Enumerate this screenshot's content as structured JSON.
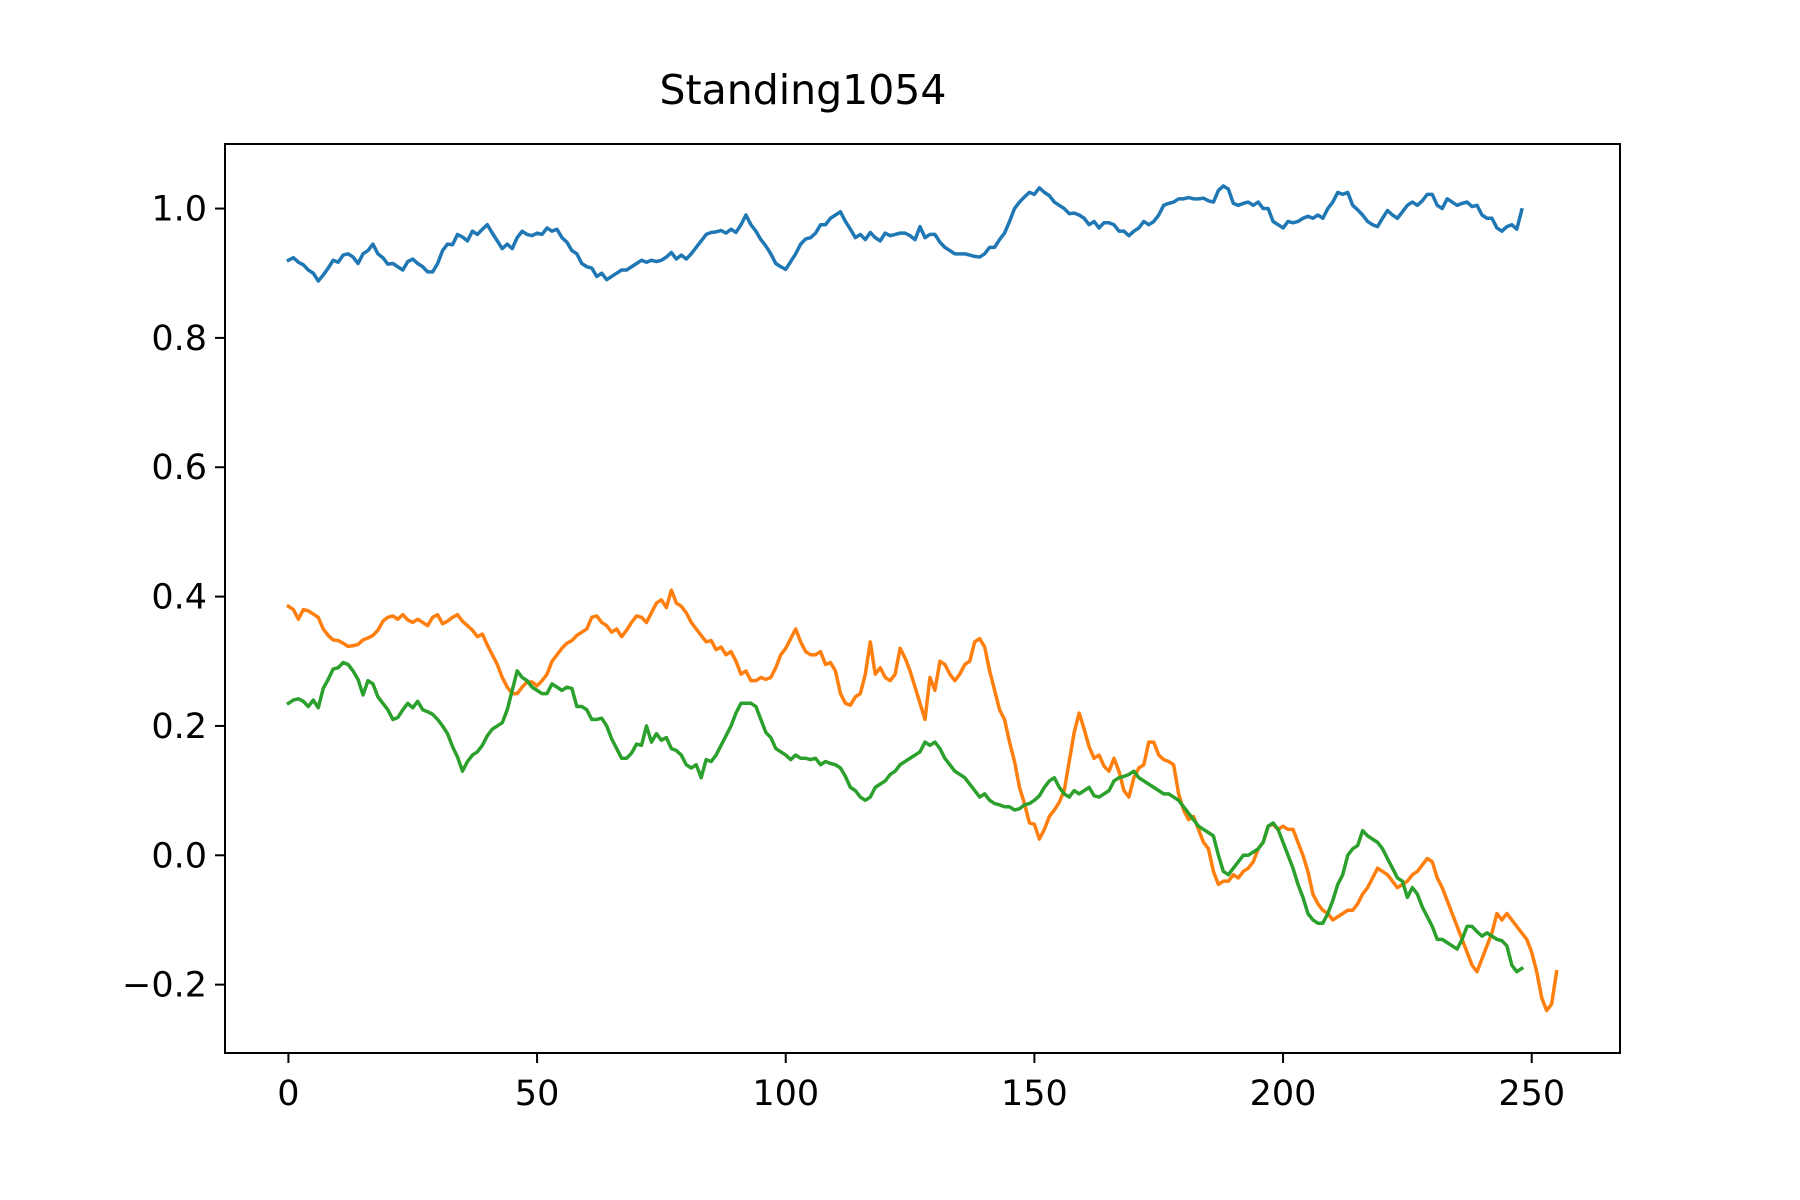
{
  "chart_data": {
    "type": "line",
    "title": "Standing1054",
    "xlabel": "",
    "ylabel": "",
    "xlim": [
      -12.75,
      267.75
    ],
    "ylim": [
      -0.3057,
      1.0998
    ],
    "x_ticks": [
      0,
      50,
      100,
      150,
      200,
      250
    ],
    "x_tick_labels": [
      "0",
      "50",
      "100",
      "150",
      "200",
      "250"
    ],
    "y_ticks": [
      -0.2,
      0.0,
      0.2,
      0.4,
      0.6,
      0.8,
      1.0
    ],
    "y_tick_labels": [
      "−0.2",
      "0.0",
      "0.2",
      "0.4",
      "0.6",
      "0.8",
      "1.0"
    ],
    "grid": false,
    "legend": "none",
    "x_start": 0,
    "x_step": 1,
    "series": [
      {
        "color": "#1f77b4",
        "values": [
          0.92,
          0.924,
          0.917,
          0.913,
          0.905,
          0.9,
          0.888,
          0.897,
          0.908,
          0.92,
          0.917,
          0.928,
          0.93,
          0.925,
          0.915,
          0.93,
          0.935,
          0.945,
          0.93,
          0.924,
          0.914,
          0.915,
          0.91,
          0.905,
          0.918,
          0.922,
          0.915,
          0.91,
          0.902,
          0.902,
          0.915,
          0.935,
          0.945,
          0.944,
          0.96,
          0.956,
          0.95,
          0.965,
          0.96,
          0.968,
          0.975,
          0.962,
          0.95,
          0.938,
          0.945,
          0.938,
          0.955,
          0.965,
          0.96,
          0.958,
          0.962,
          0.96,
          0.97,
          0.965,
          0.968,
          0.955,
          0.948,
          0.935,
          0.93,
          0.915,
          0.91,
          0.908,
          0.895,
          0.9,
          0.89,
          0.895,
          0.9,
          0.905,
          0.905,
          0.91,
          0.915,
          0.92,
          0.917,
          0.92,
          0.918,
          0.92,
          0.925,
          0.932,
          0.922,
          0.928,
          0.922,
          0.93,
          0.94,
          0.95,
          0.96,
          0.963,
          0.964,
          0.966,
          0.962,
          0.968,
          0.963,
          0.975,
          0.99,
          0.975,
          0.965,
          0.952,
          0.942,
          0.93,
          0.915,
          0.91,
          0.906,
          0.918,
          0.93,
          0.945,
          0.953,
          0.955,
          0.962,
          0.975,
          0.975,
          0.985,
          0.99,
          0.995,
          0.98,
          0.968,
          0.955,
          0.96,
          0.952,
          0.963,
          0.955,
          0.95,
          0.962,
          0.958,
          0.96,
          0.962,
          0.962,
          0.958,
          0.952,
          0.972,
          0.955,
          0.96,
          0.96,
          0.948,
          0.94,
          0.935,
          0.93,
          0.93,
          0.93,
          0.928,
          0.926,
          0.925,
          0.93,
          0.94,
          0.94,
          0.952,
          0.962,
          0.98,
          1.0,
          1.01,
          1.018,
          1.025,
          1.022,
          1.032,
          1.025,
          1.02,
          1.01,
          1.005,
          1.0,
          0.992,
          0.993,
          0.99,
          0.985,
          0.975,
          0.98,
          0.97,
          0.978,
          0.978,
          0.975,
          0.965,
          0.965,
          0.958,
          0.965,
          0.97,
          0.98,
          0.975,
          0.98,
          0.99,
          1.005,
          1.008,
          1.01,
          1.015,
          1.015,
          1.017,
          1.015,
          1.015,
          1.016,
          1.012,
          1.01,
          1.028,
          1.035,
          1.03,
          1.008,
          1.005,
          1.008,
          1.01,
          1.005,
          1.01,
          1.0,
          1.0,
          0.98,
          0.975,
          0.97,
          0.98,
          0.978,
          0.98,
          0.985,
          0.988,
          0.985,
          0.99,
          0.985,
          1.0,
          1.01,
          1.025,
          1.022,
          1.025,
          1.005,
          0.998,
          0.99,
          0.98,
          0.975,
          0.972,
          0.985,
          0.997,
          0.99,
          0.985,
          0.995,
          1.005,
          1.01,
          1.005,
          1.012,
          1.022,
          1.022,
          1.005,
          1.0,
          1.015,
          1.01,
          1.005,
          1.008,
          1.01,
          1.003,
          1.005,
          0.99,
          0.985,
          0.985,
          0.97,
          0.965,
          0.972,
          0.975,
          0.968,
          0.998
        ]
      },
      {
        "color": "#ff7f0e",
        "values": [
          0.385,
          0.38,
          0.365,
          0.38,
          0.378,
          0.373,
          0.368,
          0.35,
          0.34,
          0.333,
          0.332,
          0.328,
          0.323,
          0.324,
          0.326,
          0.333,
          0.336,
          0.34,
          0.348,
          0.362,
          0.368,
          0.37,
          0.365,
          0.372,
          0.364,
          0.36,
          0.365,
          0.36,
          0.355,
          0.368,
          0.372,
          0.358,
          0.362,
          0.368,
          0.372,
          0.362,
          0.355,
          0.348,
          0.338,
          0.342,
          0.325,
          0.31,
          0.295,
          0.275,
          0.26,
          0.25,
          0.25,
          0.26,
          0.268,
          0.268,
          0.262,
          0.27,
          0.28,
          0.3,
          0.31,
          0.32,
          0.328,
          0.332,
          0.34,
          0.345,
          0.35,
          0.368,
          0.37,
          0.36,
          0.355,
          0.345,
          0.35,
          0.338,
          0.348,
          0.36,
          0.37,
          0.368,
          0.36,
          0.375,
          0.39,
          0.395,
          0.383,
          0.41,
          0.39,
          0.385,
          0.375,
          0.36,
          0.35,
          0.34,
          0.33,
          0.332,
          0.318,
          0.322,
          0.31,
          0.315,
          0.3,
          0.28,
          0.285,
          0.27,
          0.27,
          0.275,
          0.272,
          0.275,
          0.29,
          0.31,
          0.32,
          0.335,
          0.35,
          0.33,
          0.315,
          0.31,
          0.31,
          0.315,
          0.295,
          0.298,
          0.285,
          0.25,
          0.235,
          0.232,
          0.245,
          0.25,
          0.28,
          0.33,
          0.28,
          0.29,
          0.275,
          0.27,
          0.28,
          0.32,
          0.305,
          0.285,
          0.26,
          0.235,
          0.21,
          0.275,
          0.255,
          0.3,
          0.295,
          0.28,
          0.27,
          0.28,
          0.295,
          0.3,
          0.33,
          0.335,
          0.322,
          0.285,
          0.255,
          0.225,
          0.21,
          0.175,
          0.145,
          0.105,
          0.08,
          0.05,
          0.048,
          0.025,
          0.04,
          0.06,
          0.07,
          0.082,
          0.1,
          0.145,
          0.19,
          0.22,
          0.195,
          0.168,
          0.15,
          0.155,
          0.138,
          0.13,
          0.15,
          0.13,
          0.1,
          0.09,
          0.12,
          0.135,
          0.14,
          0.175,
          0.175,
          0.155,
          0.148,
          0.145,
          0.14,
          0.095,
          0.07,
          0.055,
          0.06,
          0.04,
          0.02,
          0.01,
          -0.025,
          -0.045,
          -0.04,
          -0.04,
          -0.03,
          -0.035,
          -0.025,
          -0.02,
          -0.01,
          0.01,
          0.02,
          0.045,
          0.048,
          0.04,
          0.045,
          0.04,
          0.04,
          0.02,
          0.0,
          -0.025,
          -0.06,
          -0.075,
          -0.085,
          -0.09,
          -0.1,
          -0.095,
          -0.09,
          -0.085,
          -0.085,
          -0.075,
          -0.06,
          -0.05,
          -0.035,
          -0.02,
          -0.025,
          -0.03,
          -0.04,
          -0.05,
          -0.045,
          -0.04,
          -0.03,
          -0.025,
          -0.015,
          -0.005,
          -0.01,
          -0.035,
          -0.05,
          -0.07,
          -0.09,
          -0.11,
          -0.13,
          -0.15,
          -0.17,
          -0.18,
          -0.16,
          -0.14,
          -0.12,
          -0.09,
          -0.1,
          -0.09,
          -0.1,
          -0.11,
          -0.12,
          -0.13,
          -0.15,
          -0.18,
          -0.22,
          -0.24,
          -0.23,
          -0.18
        ]
      },
      {
        "color": "#2ca02c",
        "values": [
          0.235,
          0.24,
          0.242,
          0.238,
          0.23,
          0.24,
          0.228,
          0.258,
          0.272,
          0.288,
          0.29,
          0.298,
          0.295,
          0.285,
          0.272,
          0.248,
          0.27,
          0.265,
          0.245,
          0.235,
          0.225,
          0.21,
          0.213,
          0.225,
          0.235,
          0.228,
          0.238,
          0.225,
          0.222,
          0.218,
          0.21,
          0.2,
          0.188,
          0.168,
          0.152,
          0.13,
          0.145,
          0.155,
          0.16,
          0.17,
          0.185,
          0.195,
          0.2,
          0.205,
          0.225,
          0.255,
          0.285,
          0.275,
          0.27,
          0.26,
          0.255,
          0.25,
          0.25,
          0.265,
          0.26,
          0.255,
          0.26,
          0.258,
          0.23,
          0.23,
          0.225,
          0.21,
          0.21,
          0.212,
          0.2,
          0.18,
          0.165,
          0.15,
          0.15,
          0.158,
          0.172,
          0.17,
          0.2,
          0.175,
          0.188,
          0.178,
          0.182,
          0.165,
          0.162,
          0.155,
          0.14,
          0.135,
          0.14,
          0.12,
          0.148,
          0.145,
          0.155,
          0.17,
          0.185,
          0.2,
          0.22,
          0.235,
          0.235,
          0.235,
          0.23,
          0.21,
          0.19,
          0.182,
          0.165,
          0.16,
          0.155,
          0.148,
          0.155,
          0.15,
          0.15,
          0.148,
          0.15,
          0.14,
          0.145,
          0.142,
          0.14,
          0.135,
          0.122,
          0.105,
          0.1,
          0.09,
          0.085,
          0.09,
          0.105,
          0.11,
          0.115,
          0.125,
          0.13,
          0.14,
          0.145,
          0.15,
          0.155,
          0.16,
          0.175,
          0.17,
          0.175,
          0.165,
          0.15,
          0.14,
          0.13,
          0.125,
          0.12,
          0.11,
          0.1,
          0.09,
          0.095,
          0.085,
          0.08,
          0.078,
          0.075,
          0.075,
          0.07,
          0.072,
          0.078,
          0.08,
          0.085,
          0.092,
          0.105,
          0.115,
          0.12,
          0.105,
          0.095,
          0.09,
          0.1,
          0.095,
          0.1,
          0.105,
          0.092,
          0.09,
          0.095,
          0.1,
          0.115,
          0.12,
          0.122,
          0.125,
          0.13,
          0.12,
          0.115,
          0.11,
          0.105,
          0.1,
          0.095,
          0.095,
          0.09,
          0.085,
          0.075,
          0.065,
          0.055,
          0.045,
          0.04,
          0.035,
          0.03,
          0.0,
          -0.025,
          -0.03,
          -0.02,
          -0.01,
          0.0,
          0.0,
          0.005,
          0.01,
          0.02,
          0.045,
          0.05,
          0.04,
          0.02,
          0.0,
          -0.02,
          -0.045,
          -0.065,
          -0.09,
          -0.1,
          -0.105,
          -0.105,
          -0.09,
          -0.07,
          -0.045,
          -0.03,
          0.0,
          0.01,
          0.015,
          0.038,
          0.03,
          0.025,
          0.02,
          0.01,
          -0.005,
          -0.02,
          -0.035,
          -0.04,
          -0.065,
          -0.05,
          -0.06,
          -0.08,
          -0.095,
          -0.11,
          -0.13,
          -0.13,
          -0.135,
          -0.14,
          -0.145,
          -0.13,
          -0.11,
          -0.11,
          -0.118,
          -0.125,
          -0.12,
          -0.125,
          -0.13,
          -0.132,
          -0.14,
          -0.17,
          -0.18,
          -0.175
        ]
      }
    ]
  }
}
